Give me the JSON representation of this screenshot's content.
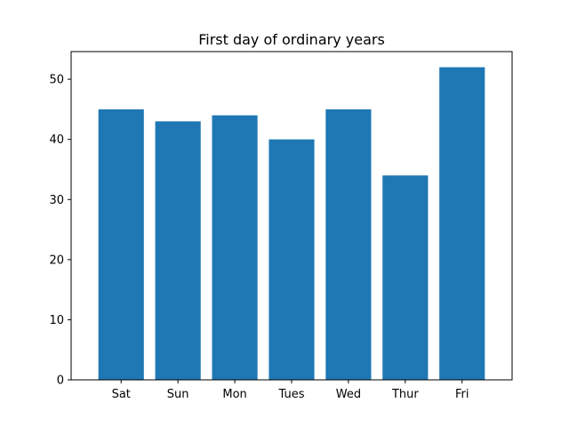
{
  "chart_data": {
    "type": "bar",
    "title": "First day of ordinary years",
    "xlabel": "",
    "ylabel": "",
    "categories": [
      "Sat",
      "Sun",
      "Mon",
      "Tues",
      "Wed",
      "Thur",
      "Fri"
    ],
    "values": [
      45,
      43,
      44,
      40,
      45,
      34,
      52
    ],
    "ylim": [
      0,
      54.6
    ],
    "yticks": [
      0,
      10,
      20,
      30,
      40,
      50
    ],
    "grid": false,
    "bar_color": "#1f77b4"
  }
}
